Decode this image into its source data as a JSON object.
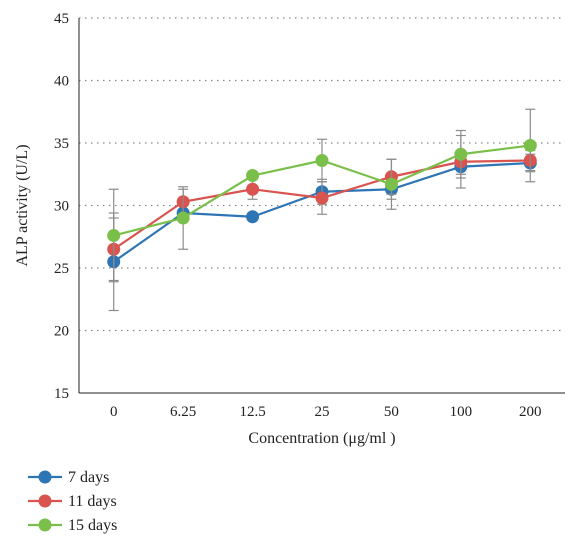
{
  "chart_data": {
    "type": "line",
    "xlabel": "Concentration (μg/ml )",
    "ylabel": "ALP activity (U/L)",
    "categories": [
      "0",
      "6.25",
      "12.5",
      "25",
      "50",
      "100",
      "200"
    ],
    "ylim": [
      15,
      45
    ],
    "yticks": [
      15,
      20,
      25,
      30,
      35,
      40,
      45
    ],
    "grid": "horizontal-dotted",
    "legend_position": "bottom-left",
    "series": [
      {
        "name": "7 days",
        "color": "#2e75b6",
        "values": [
          25.5,
          29.4,
          29.1,
          31.1,
          31.3,
          33.1,
          33.4
        ],
        "errors": [
          3.9,
          0.0,
          0.0,
          1.0,
          0.8,
          0.6,
          0.7
        ]
      },
      {
        "name": "11 days",
        "color": "#d9534f",
        "values": [
          26.5,
          30.3,
          31.3,
          30.6,
          32.3,
          33.5,
          33.6
        ],
        "errors": [
          2.5,
          1.0,
          0.8,
          1.3,
          1.4,
          2.1,
          0.8
        ]
      },
      {
        "name": "15 days",
        "color": "#7bbf4b",
        "values": [
          27.6,
          29.0,
          32.4,
          33.6,
          31.7,
          34.1,
          34.8
        ],
        "errors": [
          3.7,
          2.5,
          0.0,
          1.7,
          2.0,
          1.9,
          2.9
        ]
      }
    ]
  }
}
